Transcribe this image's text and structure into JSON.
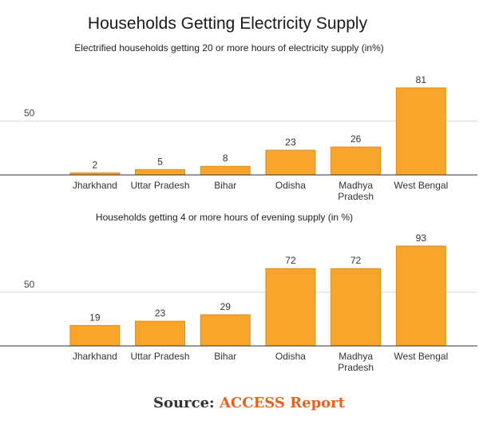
{
  "title": "Households Getting Electricity Supply",
  "source": {
    "label": "Source:",
    "org": "ACCESS Report"
  },
  "colors": {
    "bar": "#f7a62b",
    "bar_border": "#e08a14",
    "grid": "#d9d9d9",
    "axis": "#333333"
  },
  "chart_data": [
    {
      "type": "bar",
      "title": "Electrified households getting 20 or more hours of electricity supply (in%)",
      "categories": [
        "Jharkhand",
        "Uttar Pradesh",
        "Bihar",
        "Odisha",
        "Madhya Pradesh",
        "West Bengal"
      ],
      "category_lines": [
        [
          "Jharkhand"
        ],
        [
          "Uttar Pradesh"
        ],
        [
          "Bihar"
        ],
        [
          "Odisha"
        ],
        [
          "Madhya",
          "Pradesh"
        ],
        [
          "West Bengal"
        ]
      ],
      "values": [
        2,
        5,
        8,
        23,
        26,
        81
      ],
      "yticks": [
        50
      ],
      "ylim": [
        0,
        90
      ],
      "xlabel": "",
      "ylabel": ""
    },
    {
      "type": "bar",
      "title": "Households getting 4 or more hours of evening supply (in %)",
      "categories": [
        "Jharkhand",
        "Uttar Pradesh",
        "Bihar",
        "Odisha",
        "Madhya Pradesh",
        "West Bengal"
      ],
      "category_lines": [
        [
          "Jharkhand"
        ],
        [
          "Uttar Pradesh"
        ],
        [
          "Bihar"
        ],
        [
          "Odisha"
        ],
        [
          "Madhya",
          "Pradesh"
        ],
        [
          "West Bengal"
        ]
      ],
      "values": [
        19,
        23,
        29,
        72,
        72,
        93
      ],
      "yticks": [
        50
      ],
      "ylim": [
        0,
        100
      ],
      "xlabel": "",
      "ylabel": ""
    }
  ]
}
